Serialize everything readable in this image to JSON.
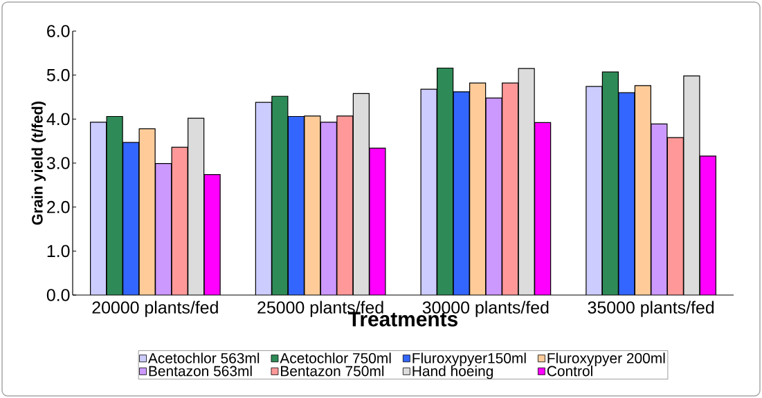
{
  "chart_data": {
    "type": "bar",
    "xlabel": "Treatments",
    "ylabel": "Grain yield (t/fed)",
    "categories": [
      "20000 plants/fed",
      "25000 plants/fed",
      "30000 plants/fed",
      "35000 plants/fed"
    ],
    "series": [
      {
        "name": "Acetochlor 563ml",
        "color": "#ccccff",
        "values": [
          3.93,
          4.38,
          4.68,
          4.74
        ]
      },
      {
        "name": "Acetochlor 750ml",
        "color": "#2e8b57",
        "values": [
          4.06,
          4.52,
          5.16,
          5.07
        ]
      },
      {
        "name": "Fluroxypyer150ml",
        "color": "#3366ff",
        "values": [
          3.47,
          4.06,
          4.62,
          4.6
        ]
      },
      {
        "name": "Fluroxypyer 200ml",
        "color": "#ffcc99",
        "values": [
          3.78,
          4.07,
          4.82,
          4.76
        ]
      },
      {
        "name": "Bentazon 563ml",
        "color": "#cc99ff",
        "values": [
          2.99,
          3.93,
          4.48,
          3.89
        ]
      },
      {
        "name": "Bentazon 750ml",
        "color": "#ff9999",
        "values": [
          3.36,
          4.07,
          4.82,
          3.58
        ]
      },
      {
        "name": "Hand hoeing",
        "color": "#dcdcdc",
        "values": [
          4.02,
          4.58,
          5.15,
          4.98
        ]
      },
      {
        "name": "Control",
        "color": "#ff00ff",
        "values": [
          2.74,
          3.34,
          3.92,
          3.16
        ]
      }
    ],
    "ylim": [
      0,
      6
    ],
    "yticks": [
      {
        "value": 0,
        "label": "0.0"
      },
      {
        "value": 1,
        "label": "1.0"
      },
      {
        "value": 2,
        "label": "2.0"
      },
      {
        "value": 3,
        "label": "3.0"
      },
      {
        "value": 4,
        "label": "4.0"
      },
      {
        "value": 5,
        "label": "5.0"
      },
      {
        "value": 6,
        "label": "6.0"
      }
    ],
    "legend": "bottom"
  }
}
